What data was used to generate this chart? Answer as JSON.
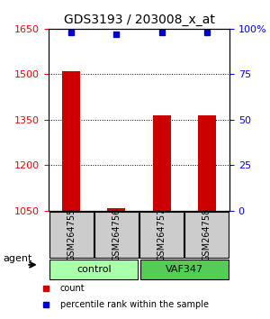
{
  "title": "GDS3193 / 203008_x_at",
  "samples": [
    "GSM264755",
    "GSM264756",
    "GSM264757",
    "GSM264758"
  ],
  "counts": [
    1510,
    1057,
    1365,
    1365
  ],
  "percentile_ranks": [
    98,
    97,
    98,
    98
  ],
  "ylim_left": [
    1050,
    1650
  ],
  "ylim_right": [
    0,
    100
  ],
  "yticks_left": [
    1050,
    1200,
    1350,
    1500,
    1650
  ],
  "yticks_right": [
    0,
    25,
    50,
    75,
    100
  ],
  "ytick_labels_right": [
    "0",
    "25",
    "50",
    "75",
    "100%"
  ],
  "bar_color": "#cc0000",
  "dot_color": "#0000cc",
  "groups": [
    {
      "label": "control",
      "samples": [
        0,
        1
      ],
      "color": "#aaffaa"
    },
    {
      "label": "VAF347",
      "samples": [
        2,
        3
      ],
      "color": "#55cc55"
    }
  ],
  "group_label": "agent",
  "legend_count_label": "count",
  "legend_pct_label": "percentile rank within the sample",
  "background_color": "#ffffff",
  "plot_bg_color": "#ffffff",
  "grid_color": "#000000",
  "sample_box_color": "#cccccc"
}
